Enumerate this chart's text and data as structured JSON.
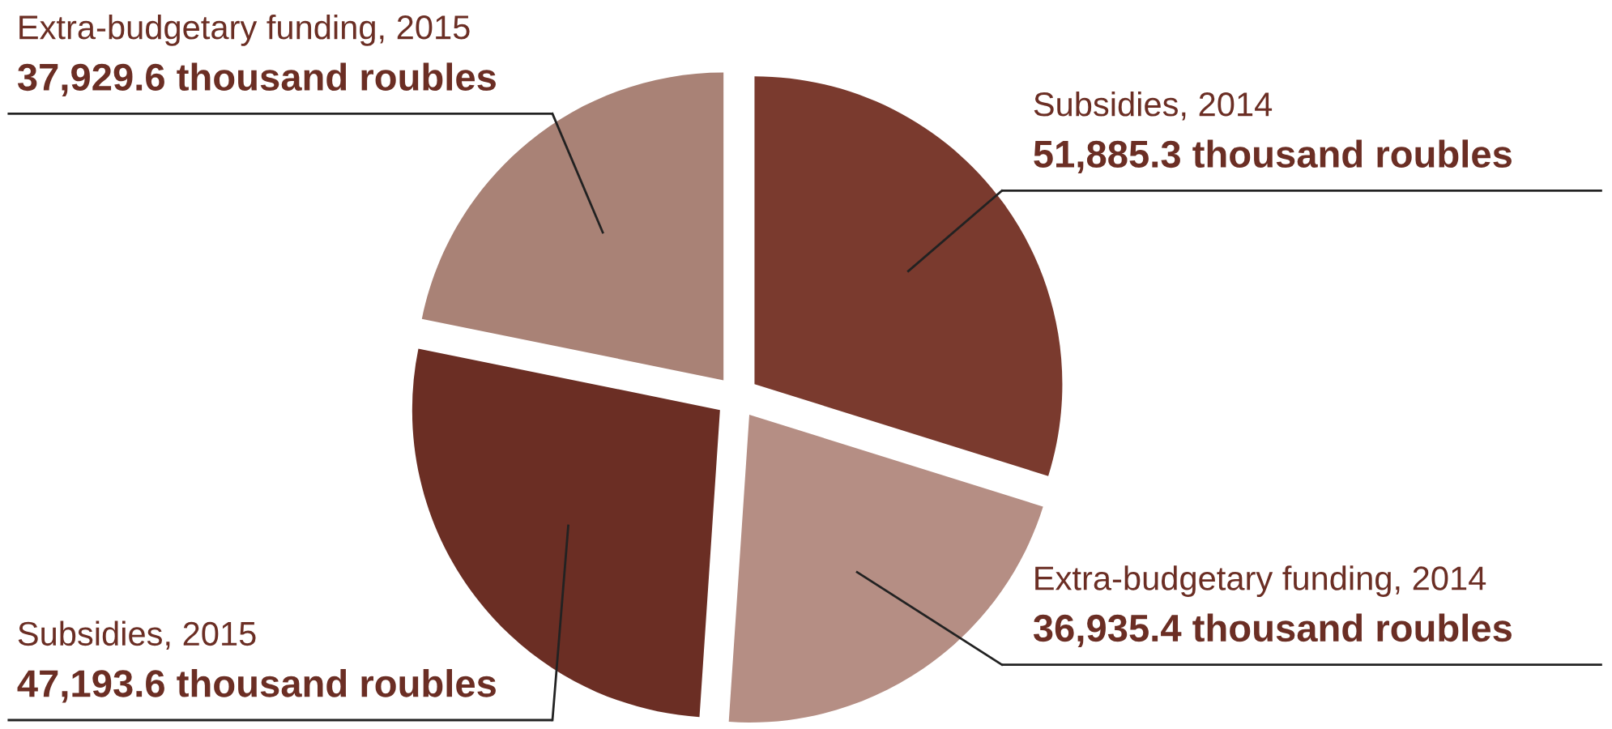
{
  "chart_data": {
    "type": "pie",
    "categories": [
      "Subsidies, 2014",
      "Extra-budgetary funding, 2014",
      "Subsidies, 2015",
      "Extra-budgetary funding, 2015"
    ],
    "values": [
      51885.3,
      36935.4,
      47193.6,
      37929.6
    ],
    "value_labels": [
      "51,885.3 thousand roubles",
      "36,935.4 thousand roubles",
      "47,193.6 thousand roubles",
      "37,929.6 thousand roubles"
    ],
    "colors": [
      "#7a3a2e",
      "#b58e84",
      "#6b2e24",
      "#a98276"
    ]
  }
}
